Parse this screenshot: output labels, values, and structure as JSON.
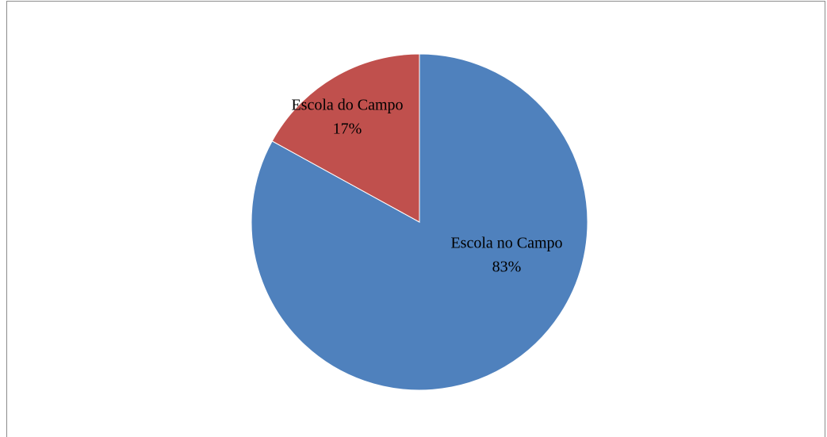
{
  "chart_data": {
    "type": "pie",
    "categories": [
      "Escola no Campo",
      "Escola do Campo"
    ],
    "values": [
      83,
      17
    ],
    "value_labels": [
      "83%",
      "17%"
    ],
    "colors": [
      "#4f81bd",
      "#c0504d"
    ]
  }
}
